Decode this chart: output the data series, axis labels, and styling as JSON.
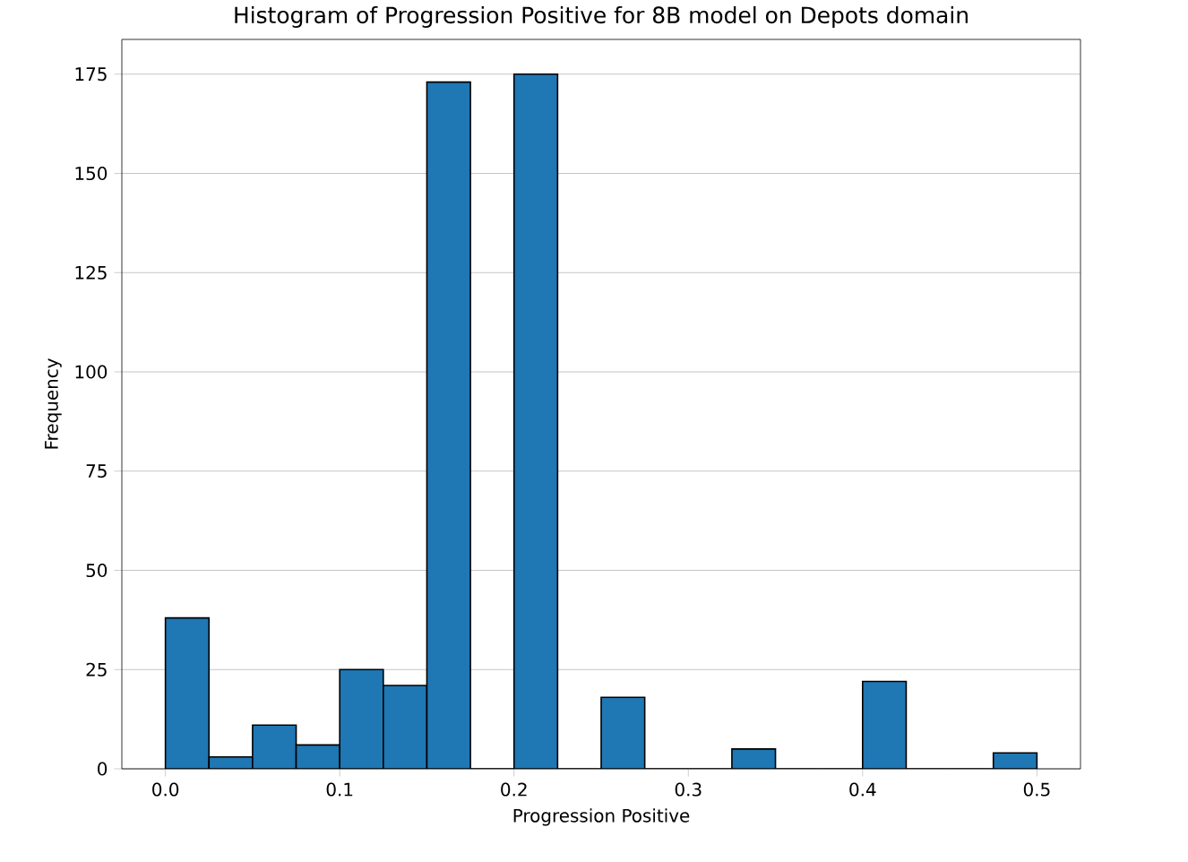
{
  "chart_data": {
    "type": "histogram",
    "title": "Histogram of Progression Positive for 8B model on Depots domain",
    "xlabel": "Progression Positive",
    "ylabel": "Frequency",
    "bins": [
      0,
      0.025,
      0.05,
      0.075,
      0.1,
      0.125,
      0.15,
      0.175,
      0.2,
      0.225,
      0.25,
      0.275,
      0.3,
      0.325,
      0.35,
      0.375,
      0.4,
      0.425,
      0.45,
      0.475,
      0.5
    ],
    "values": [
      38,
      3,
      11,
      6,
      25,
      21,
      173,
      0,
      175,
      0,
      18,
      0,
      0,
      5,
      0,
      0,
      22,
      0,
      0,
      4
    ],
    "color": "#1f77b4",
    "xlim": [
      -0.025,
      0.525
    ],
    "ylim": [
      0,
      183.75
    ],
    "xticks": [
      {
        "value": 0,
        "label": "0.0"
      },
      0.1,
      0.2,
      0.3,
      0.4,
      0.5
    ],
    "yticks": [
      0,
      25,
      50,
      75,
      100,
      125,
      150,
      175
    ],
    "grid": "y"
  }
}
